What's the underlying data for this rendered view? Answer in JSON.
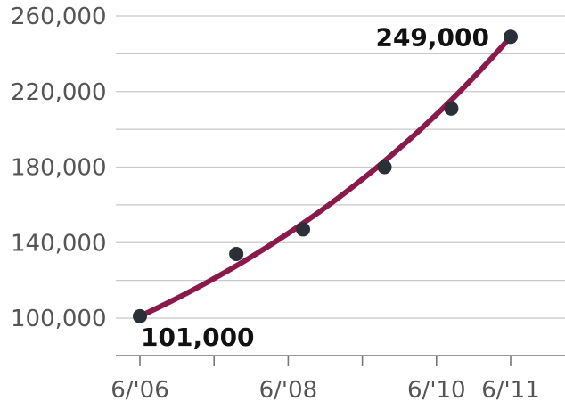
{
  "chart_data": {
    "type": "scatter",
    "x_tick_labels": [
      "6/'06",
      "6/'08",
      "6/'10",
      "6/'11"
    ],
    "y_tick_labels": [
      "100,000",
      "140,000",
      "180,000",
      "220,000",
      "260,000"
    ],
    "y_ticks": [
      100000,
      140000,
      180000,
      220000,
      260000
    ],
    "ylim": [
      80000,
      270000
    ],
    "xlim": [
      2006.5,
      2012.2
    ],
    "points": [
      {
        "x": 2006.5,
        "y": 101000
      },
      {
        "x": 2007.8,
        "y": 134000
      },
      {
        "x": 2008.7,
        "y": 147000
      },
      {
        "x": 2009.8,
        "y": 180000
      },
      {
        "x": 2010.7,
        "y": 211000
      },
      {
        "x": 2011.5,
        "y": 249000
      }
    ],
    "trend": {
      "start": 101000,
      "end": 249000
    },
    "annotations": [
      {
        "text": "101,000",
        "point_index": 0
      },
      {
        "text": "249,000",
        "point_index": 5
      }
    ],
    "grid": true,
    "colors": {
      "line": "#8a1a4a",
      "point": "#2b2f36",
      "grid": "#c8c8c8"
    }
  }
}
